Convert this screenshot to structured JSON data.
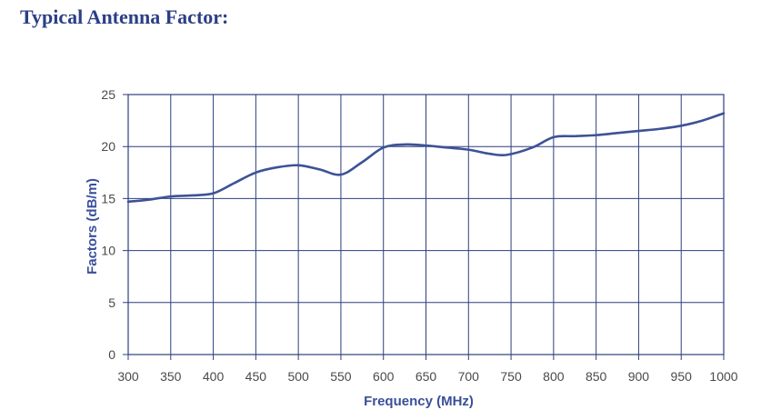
{
  "page": {
    "title": "Typical Antenna Factor:"
  },
  "colors": {
    "title": "#2b3f86",
    "grid": "#2d3f7f",
    "line": "#3d5296",
    "axis_label": "#3a4f9a",
    "tick_text": "#4a4a4a"
  },
  "chart_data": {
    "type": "line",
    "title": "",
    "xlabel": "Frequency (MHz)",
    "ylabel": "Factors (dB/m)",
    "xlim": [
      300,
      1000
    ],
    "ylim": [
      0,
      25
    ],
    "x_ticks": [
      300,
      350,
      400,
      450,
      500,
      550,
      600,
      650,
      700,
      750,
      800,
      850,
      900,
      950,
      1000
    ],
    "y_ticks": [
      0,
      5,
      10,
      15,
      20,
      25
    ],
    "grid": true,
    "legend": "none",
    "series": [
      {
        "x": [
          300,
          325,
          350,
          375,
          400,
          425,
          450,
          475,
          500,
          525,
          550,
          575,
          600,
          625,
          650,
          675,
          700,
          725,
          745,
          775,
          800,
          825,
          850,
          875,
          900,
          925,
          950,
          975,
          1000
        ],
        "y": [
          14.7,
          14.9,
          15.2,
          15.3,
          15.5,
          16.5,
          17.5,
          18.0,
          18.2,
          17.8,
          17.3,
          18.5,
          19.9,
          20.2,
          20.1,
          19.9,
          19.7,
          19.3,
          19.2,
          19.9,
          20.9,
          21.0,
          21.1,
          21.3,
          21.5,
          21.7,
          22.0,
          22.5,
          23.2
        ]
      }
    ]
  }
}
